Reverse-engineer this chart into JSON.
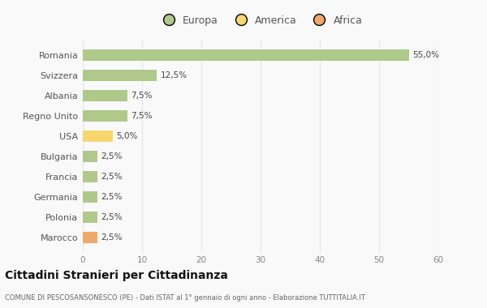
{
  "categories": [
    "Romania",
    "Svizzera",
    "Albania",
    "Regno Unito",
    "USA",
    "Bulgaria",
    "Francia",
    "Germania",
    "Polonia",
    "Marocco"
  ],
  "values": [
    55.0,
    12.5,
    7.5,
    7.5,
    5.0,
    2.5,
    2.5,
    2.5,
    2.5,
    2.5
  ],
  "labels": [
    "55,0%",
    "12,5%",
    "7,5%",
    "7,5%",
    "5,0%",
    "2,5%",
    "2,5%",
    "2,5%",
    "2,5%",
    "2,5%"
  ],
  "continents": [
    "Europa",
    "Europa",
    "Europa",
    "Europa",
    "America",
    "Europa",
    "Europa",
    "Europa",
    "Europa",
    "Africa"
  ],
  "colors": {
    "Europa": "#aec98a",
    "America": "#f5d76e",
    "Africa": "#f0a868"
  },
  "legend": [
    "Europa",
    "America",
    "Africa"
  ],
  "legend_colors": [
    "#aec98a",
    "#f5d76e",
    "#f0a868"
  ],
  "xlim": [
    0,
    60
  ],
  "xticks": [
    0,
    10,
    20,
    30,
    40,
    50,
    60
  ],
  "title": "Cittadini Stranieri per Cittadinanza",
  "subtitle": "COMUNE DI PESCOSANSONESCO (PE) - Dati ISTAT al 1° gennaio di ogni anno - Elaborazione TUTTITALIA.IT",
  "background_color": "#f9f9f9",
  "grid_color": "#e8e8e8",
  "bar_height": 0.55
}
